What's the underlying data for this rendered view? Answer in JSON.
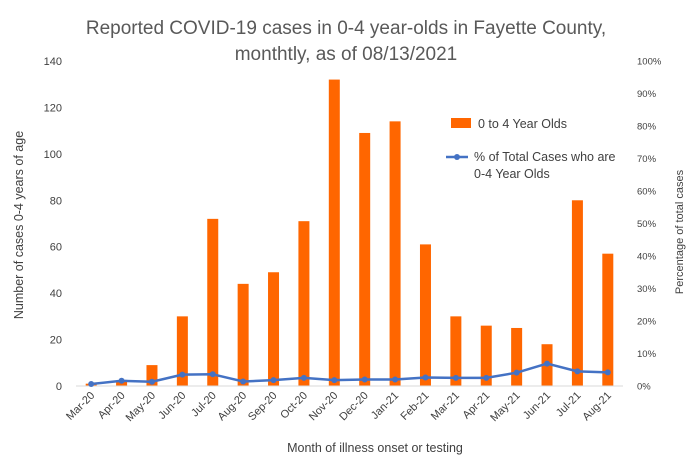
{
  "chart_data": {
    "type": "bar",
    "title_lines": [
      "Reported COVID-19 cases in 0-4 year-olds in Fayette County,",
      "monthtly, as of 08/13/2021"
    ],
    "xlabel": "Month of illness onset or testing",
    "ylabel": "Number of cases 0-4 years of age",
    "y2label": "Percentage of total cases",
    "categories": [
      "Mar-20",
      "Apr-20",
      "May-20",
      "Jun-20",
      "Jul-20",
      "Aug-20",
      "Sep-20",
      "Oct-20",
      "Nov-20",
      "Dec-20",
      "Jan-21",
      "Feb-21",
      "Mar-21",
      "Apr-21",
      "May-21",
      "Jun-21",
      "Jul-21",
      "Aug-21"
    ],
    "ylim": [
      0,
      140
    ],
    "y_ticks": [
      "0",
      "20",
      "40",
      "60",
      "80",
      "100",
      "120",
      "140"
    ],
    "y2lim": [
      0,
      100
    ],
    "y2_ticks": [
      "0%",
      "10%",
      "20%",
      "30%",
      "40%",
      "50%",
      "60%",
      "70%",
      "80%",
      "90%",
      "100%"
    ],
    "series": [
      {
        "name": "0 to 4 Year Olds",
        "type": "bar",
        "color": "#FF6600",
        "axis": "left",
        "values": [
          1,
          2,
          9,
          30,
          72,
          44,
          49,
          71,
          132,
          109,
          114,
          61,
          30,
          26,
          25,
          18,
          80,
          57
        ]
      },
      {
        "name_lines": [
          "% of Total Cases who are",
          "0-4 Year Olds"
        ],
        "type": "line",
        "color": "#4472C4",
        "axis": "right",
        "values": [
          0.6,
          1.6,
          1.3,
          3.5,
          3.6,
          1.4,
          1.8,
          2.5,
          1.8,
          2.0,
          2.0,
          2.6,
          2.5,
          2.5,
          4.1,
          6.9,
          4.5,
          4.2
        ]
      }
    ],
    "grid": false,
    "legend_position": "right-inside"
  }
}
